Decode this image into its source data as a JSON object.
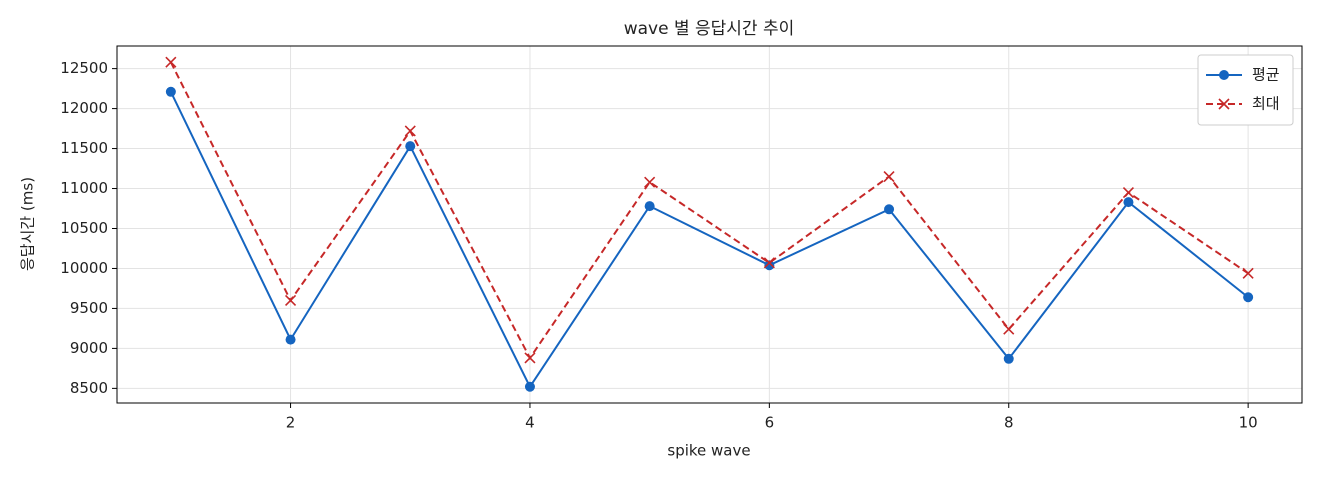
{
  "chart_data": {
    "type": "line",
    "title": "wave 별 응답시간 추이",
    "x_label": "spike wave",
    "y_label": "응답시간 (ms)",
    "x": [
      1,
      2,
      3,
      4,
      5,
      6,
      7,
      8,
      9,
      10
    ],
    "series": [
      {
        "name": "평균",
        "color": "#1565c0",
        "marker": "circle",
        "dash": "solid",
        "values": [
          12210,
          9110,
          11530,
          8520,
          10780,
          10040,
          10740,
          8870,
          10830,
          9640
        ]
      },
      {
        "name": "최대",
        "color": "#c62828",
        "marker": "x",
        "dash": "dashed",
        "values": [
          12580,
          9600,
          11720,
          8880,
          11080,
          10070,
          11150,
          9240,
          10950,
          9940
        ]
      }
    ],
    "xlim": [
      0.55,
      10.45
    ],
    "ylim": [
      8317,
      12783
    ],
    "xticks": [
      2,
      4,
      6,
      8,
      10
    ],
    "yticks": [
      8500,
      9000,
      9500,
      10000,
      10500,
      11000,
      11500,
      12000,
      12500
    ],
    "grid": true,
    "legend": "upper-right"
  }
}
